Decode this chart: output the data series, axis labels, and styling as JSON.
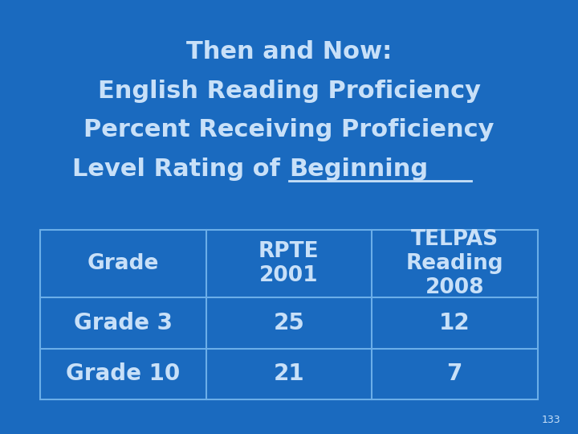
{
  "bg_color": "#1a6abf",
  "text_color": "#c8e0f8",
  "table_border_color": "#6baee8",
  "table_headers": [
    "Grade",
    "RPTE\n2001",
    "TELPAS\nReading\n2008"
  ],
  "table_rows": [
    [
      "Grade 3",
      "25",
      "12"
    ],
    [
      "Grade 10",
      "21",
      "7"
    ]
  ],
  "page_number": "133",
  "title_fontsize": 22,
  "table_fontsize": 20,
  "header_fontsize": 19
}
